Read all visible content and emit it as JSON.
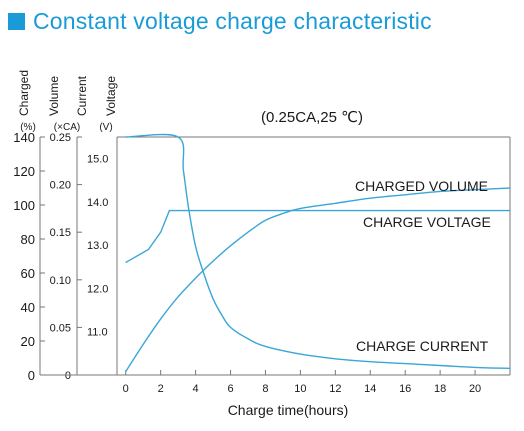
{
  "header": {
    "title": "Constant voltage charge characteristic",
    "accent_color": "#1a9bd7"
  },
  "chart_data": {
    "type": "line",
    "annotation": "(0.25CA,25 ℃)",
    "xlabel": "Charge time(hours)",
    "xlim": [
      -0.5,
      22
    ],
    "x_ticks": [
      0,
      2,
      4,
      6,
      8,
      10,
      12,
      14,
      16,
      18,
      20
    ],
    "y_axes": [
      {
        "name": "Charged",
        "unit": "(%)",
        "range": [
          0,
          140
        ],
        "ticks": [
          0,
          20,
          40,
          60,
          80,
          100,
          120,
          140
        ]
      },
      {
        "name": "Volume",
        "unit": "(×CA)",
        "range": [
          0,
          0.25
        ],
        "ticks": [
          "0",
          "0.05",
          "0.10",
          "0.15",
          "0.20",
          "0.25"
        ]
      },
      {
        "name": "Current",
        "unit": "",
        "range": [
          0,
          0.25
        ],
        "ticks": []
      },
      {
        "name": "Voltage",
        "unit": "(V)",
        "range": [
          10.0,
          15.5
        ],
        "ticks": [
          "11.0",
          "12.0",
          "13.0",
          "14.0",
          "15.0"
        ]
      }
    ],
    "line_color": "#3aa6d8",
    "series": [
      {
        "name": "CHARGED VOLUME",
        "axis": "Charged",
        "x": [
          0,
          1,
          2,
          3,
          4,
          5,
          6,
          7,
          8,
          9,
          10,
          12,
          14,
          16,
          18,
          20,
          22
        ],
        "y": [
          2,
          18,
          33,
          46,
          57,
          67,
          76,
          84,
          91,
          95,
          98,
          101,
          104,
          106,
          108,
          109,
          110
        ]
      },
      {
        "name": "CHARGE VOLTAGE",
        "axis": "Voltage",
        "x": [
          0,
          1.3,
          2.0,
          2.5,
          2.75,
          22
        ],
        "y": [
          12.6,
          12.9,
          13.3,
          13.8,
          13.8,
          13.8
        ]
      },
      {
        "name": "CHARGE CURRENT",
        "axis": "Volume",
        "x": [
          0,
          3.0,
          3.3,
          3.6,
          4.0,
          4.5,
          5.0,
          5.5,
          6.0,
          7.0,
          8.0,
          10,
          12,
          14,
          16,
          18,
          20,
          22
        ],
        "y": [
          0.25,
          0.25,
          0.215,
          0.175,
          0.135,
          0.105,
          0.08,
          0.063,
          0.05,
          0.038,
          0.03,
          0.022,
          0.017,
          0.014,
          0.012,
          0.01,
          0.008,
          0.007
        ]
      }
    ],
    "grid": false
  }
}
